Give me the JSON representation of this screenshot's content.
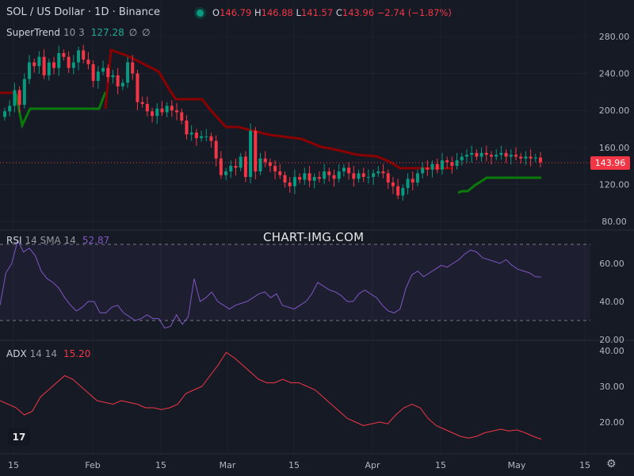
{
  "header": {
    "symbol": "SOL / US Dollar · 1D · Binance",
    "ohlc": [
      {
        "label": "O",
        "value": "146.79"
      },
      {
        "label": "H",
        "value": "146.88"
      },
      {
        "label": "L",
        "value": "141.57"
      },
      {
        "label": "C",
        "value": "143.96"
      }
    ],
    "change": "−2.74 (−1.87%)"
  },
  "supertrend": {
    "name": "SuperTrend",
    "params": "10 3",
    "value": "127.28",
    "hide_a": "∅",
    "hide_b": "∅"
  },
  "rsi": {
    "name": "RSI",
    "params": "14 SMA 14",
    "value": "52.87"
  },
  "adx": {
    "name": "ADX",
    "params": "14 14",
    "value": "15.20"
  },
  "watermark": "CHART-IMG.COM",
  "price_label": "143.96",
  "colors": {
    "background": "#161a25",
    "up": "#089981",
    "down": "#f23645",
    "supertrend_up": "#0a7a0a",
    "supertrend_down": "#8b0000",
    "rsi_line": "#7e57c2",
    "adx_line": "#f23645"
  },
  "icons": {
    "logo": "tradingview-logo-icon",
    "settings": "gear-icon"
  },
  "chart_data": [
    {
      "type": "candlestick",
      "ylim": [
        75,
        295
      ],
      "y_ticks": [
        "280.00",
        "240.00",
        "200.00",
        "160.00",
        "120.00",
        "80.00"
      ],
      "x_ticks": [
        "15",
        "Feb",
        "15",
        "Mar",
        "15",
        "Apr",
        "15",
        "May",
        "15"
      ],
      "candles_close": [
        199,
        205,
        222,
        206,
        234,
        252,
        248,
        258,
        238,
        252,
        246,
        262,
        258,
        246,
        252,
        265,
        255,
        250,
        232,
        242,
        246,
        236,
        238,
        226,
        230,
        252,
        240,
        209,
        207,
        199,
        194,
        202,
        198,
        205,
        200,
        198,
        189,
        174,
        176,
        170,
        172,
        172,
        167,
        148,
        130,
        134,
        140,
        138,
        150,
        128,
        178,
        134,
        148,
        144,
        140,
        134,
        130,
        122,
        118,
        128,
        125,
        132,
        124,
        128,
        126,
        134,
        130,
        126,
        134,
        138,
        132,
        126,
        132,
        128,
        128,
        132,
        134,
        132,
        122,
        118,
        108,
        116,
        126,
        122,
        132,
        138,
        136,
        142,
        136,
        146,
        144,
        140,
        146,
        150,
        152,
        154,
        150,
        154,
        152,
        150,
        152,
        154,
        150,
        152,
        150,
        148,
        150,
        148,
        149,
        144
      ],
      "supertrend_lower": {
        "start_value": 182,
        "segments": [
          {
            "v": 214,
            "note": "up"
          },
          {
            "v": 202,
            "note": "flat"
          },
          {
            "v": 110,
            "note": "late start"
          },
          {
            "v": 127.28,
            "note": "end"
          }
        ]
      },
      "supertrend_upper_values": [
        214,
        214,
        262,
        248,
        235,
        215,
        205,
        178,
        176,
        172,
        168,
        160,
        154,
        150,
        145,
        139,
        139,
        140,
        142,
        142
      ]
    },
    {
      "type": "line",
      "name": "RSI",
      "ylim": [
        20,
        75
      ],
      "y_ticks": [
        "60.00",
        "40.00",
        "20.00"
      ],
      "bands": [
        70,
        30
      ],
      "values": [
        38,
        55,
        60,
        72,
        66,
        68,
        64,
        56,
        52,
        50,
        47,
        42,
        38,
        35,
        37,
        40,
        40,
        34,
        34,
        37,
        38,
        34,
        32,
        30,
        31,
        33,
        31,
        31,
        26,
        27,
        33,
        28,
        32,
        52,
        40,
        42,
        45,
        40,
        38,
        36,
        38,
        39,
        40,
        42,
        44,
        45,
        42,
        44,
        38,
        37,
        36,
        38,
        40,
        44,
        50,
        48,
        46,
        45,
        43,
        40,
        40,
        44,
        46,
        44,
        42,
        38,
        35,
        34,
        36,
        47,
        54,
        56,
        53,
        55,
        57,
        59,
        58,
        60,
        62,
        65,
        67,
        66,
        63,
        62,
        61,
        60,
        62,
        59,
        57,
        56,
        55,
        53,
        52.87
      ],
      "last": 52.87
    },
    {
      "type": "line",
      "name": "ADX",
      "ylim": [
        12,
        42
      ],
      "y_ticks": [
        "40.00",
        "30.00",
        "20.00"
      ],
      "values": [
        26,
        25,
        24,
        22,
        23,
        27,
        29,
        31,
        33,
        32,
        30,
        28,
        26,
        25.5,
        25,
        26,
        25.5,
        25,
        24,
        24,
        23.5,
        24,
        25,
        28,
        29,
        30,
        33,
        36,
        39.5,
        38,
        36,
        34,
        32,
        31,
        31,
        32,
        31,
        31,
        30,
        29,
        27,
        25,
        23,
        21,
        20,
        19,
        19.5,
        20,
        19.5,
        22,
        24,
        25,
        24,
        21,
        19,
        18,
        17,
        16,
        15.5,
        16,
        17,
        17.5,
        18,
        17.5,
        17.8,
        17,
        16,
        15.2
      ],
      "last": 15.2
    }
  ]
}
